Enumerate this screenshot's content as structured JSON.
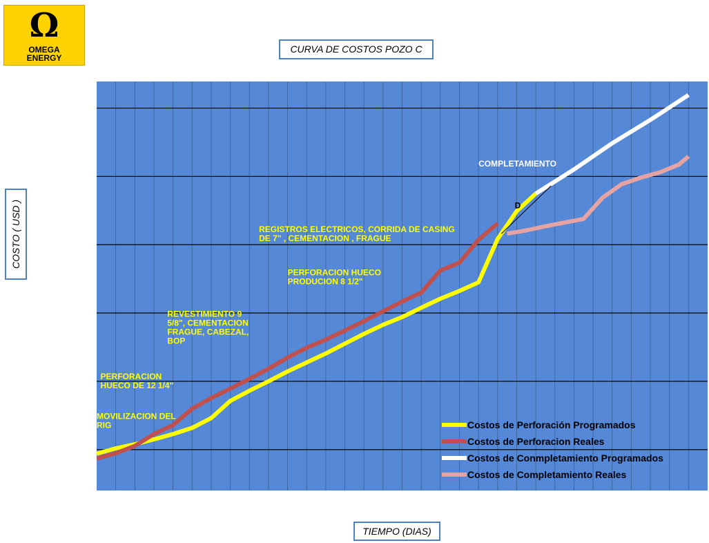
{
  "logo": {
    "symbol": "Ω",
    "line1": "OMEGA",
    "line2": "ENERGY"
  },
  "chart_data": {
    "type": "line",
    "title": "CURVA DE COSTOS POZO C",
    "xlabel": "TIEMPO (DIAS)",
    "ylabel": "COSTO ( USD )",
    "grid": true,
    "background": "#5588d6",
    "legend_position": "bottom-right",
    "xlim": [
      0,
      32
    ],
    "ylim": [
      0,
      100
    ],
    "series": [
      {
        "name": "Costos de Perforación  Programados",
        "color": "#ffff00",
        "points": [
          [
            0,
            9
          ],
          [
            1,
            10.3
          ],
          [
            2,
            11.3
          ],
          [
            3,
            12.5
          ],
          [
            4,
            13.8
          ],
          [
            5,
            15.3
          ],
          [
            6,
            17.7
          ],
          [
            7,
            21.9
          ],
          [
            8,
            24.4
          ],
          [
            9,
            26.7
          ],
          [
            10,
            29.1
          ],
          [
            11,
            31.3
          ],
          [
            12,
            33.5
          ],
          [
            13,
            35.9
          ],
          [
            14,
            38.3
          ],
          [
            15,
            40.5
          ],
          [
            16,
            42.4
          ],
          [
            17,
            44.7
          ],
          [
            18,
            46.9
          ],
          [
            19,
            48.8
          ],
          [
            20,
            50.9
          ],
          [
            21,
            61.5
          ],
          [
            22,
            68.3
          ],
          [
            23,
            72.6
          ]
        ]
      },
      {
        "name": "Costos de Perforacion  Reales",
        "color": "#c0504d",
        "points": [
          [
            0,
            7.8
          ],
          [
            1,
            9.1
          ],
          [
            2,
            10.9
          ],
          [
            3,
            13.8
          ],
          [
            4,
            16.0
          ],
          [
            5,
            20.0
          ],
          [
            6,
            22.6
          ],
          [
            7,
            24.9
          ],
          [
            8,
            27.3
          ],
          [
            9,
            29.8
          ],
          [
            10,
            32.5
          ],
          [
            11,
            34.9
          ],
          [
            12,
            36.9
          ],
          [
            13,
            39.1
          ],
          [
            14,
            41.4
          ],
          [
            15,
            43.8
          ],
          [
            16,
            46.2
          ],
          [
            17,
            48.4
          ],
          [
            18,
            53.8
          ],
          [
            19,
            55.7
          ],
          [
            20,
            61.3
          ],
          [
            21,
            65.3
          ]
        ]
      },
      {
        "name": "Costos de Conmpletamiento  Programados",
        "color": "#ffffff",
        "points": [
          [
            23,
            72.6
          ],
          [
            25,
            78.5
          ],
          [
            27,
            84.9
          ],
          [
            29,
            90.6
          ],
          [
            31,
            96.7
          ]
        ]
      },
      {
        "name": "Costos de Completamiento Reales",
        "color": "#e6a3a3",
        "points": [
          [
            21.5,
            62.8
          ],
          [
            22.5,
            63.6
          ],
          [
            23.5,
            64.6
          ],
          [
            24.5,
            65.5
          ],
          [
            25.5,
            66.4
          ],
          [
            26.5,
            71.6
          ],
          [
            27.5,
            74.9
          ],
          [
            28.5,
            76.5
          ],
          [
            29.5,
            77.8
          ],
          [
            30.5,
            79.7
          ],
          [
            31,
            81.7
          ]
        ]
      }
    ],
    "annotations": [
      {
        "text": "MOVILIZACION DEL\nRIG",
        "color": "#ffff00",
        "x": 0,
        "y": 17.5
      },
      {
        "text": "PERFORACION\nHUECO DE  12 1/4\"",
        "color": "#ffff00",
        "x": 0.2,
        "y": 27.2
      },
      {
        "text": "REVESTIMIENTO 9\n5/8\", CEMENTACION\nFRAGUE, CABEZAL,\nBOP",
        "color": "#ffff00",
        "x": 3.7,
        "y": 42.5
      },
      {
        "text": "PERFORACION HUECO\nPRODUCION 8 1/2\"",
        "color": "#ffff00",
        "x": 10,
        "y": 52.6
      },
      {
        "text": "REGISTROS ELECTRICOS,  CORRIDA DE CASING\nDE 7\" , CEMENTACION , FRAGUE",
        "color": "#ffff00",
        "x": 8.5,
        "y": 63.2
      },
      {
        "text": "COMPLETAMIENTO",
        "color": "#ffffff",
        "x": 20,
        "y": 79.2
      },
      {
        "text": "D",
        "color": "#000000",
        "x": 21.9,
        "y": 69.0
      }
    ]
  }
}
